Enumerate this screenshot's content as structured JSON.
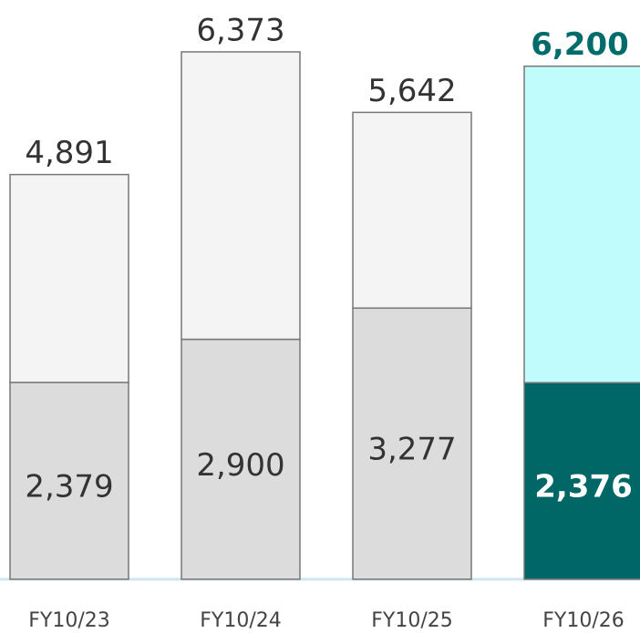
{
  "chart_data": {
    "type": "stacked_bar",
    "categories": [
      "FY10/23",
      "FY10/24",
      "FY10/25",
      "FY10/26"
    ],
    "series": [
      {
        "values": [
          2379,
          2900,
          3277,
          2376
        ],
        "value_labels": [
          "2,379",
          "2,900",
          "3,277",
          "2,376"
        ],
        "color": [
          "#dcdcdc",
          "#dcdcdc",
          "#dcdcdc",
          "#006666"
        ]
      },
      {
        "values": [
          2512,
          3473,
          2365,
          3824
        ],
        "color": [
          "#f4f4f4",
          "#f4f4f4",
          "#f4f4f4",
          "#c0fcfc"
        ]
      }
    ],
    "totals": {
      "values": [
        4891,
        6373,
        5642,
        6200
      ],
      "value_labels": [
        "4,891",
        "6,373",
        "5,642",
        "6,200"
      ]
    },
    "ylim": [
      0,
      7000
    ]
  }
}
